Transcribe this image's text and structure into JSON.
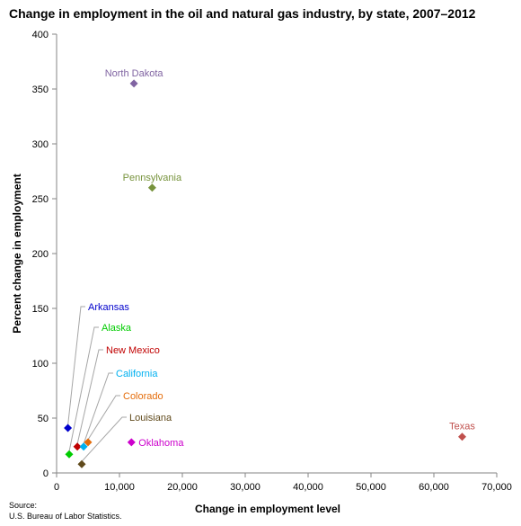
{
  "source": {
    "label": "Source:",
    "text": "U.S. Bureau of Labor Statistics."
  },
  "chart_data": {
    "type": "scatter",
    "title": "Change in employment in the oil and natural gas industry, by state, 2007–2012",
    "xlabel": "Change in employment level",
    "ylabel": "Percent change in employment",
    "xlim": [
      0,
      70000
    ],
    "ylim": [
      0,
      400
    ],
    "x_ticks": [
      0,
      10000,
      20000,
      30000,
      40000,
      50000,
      60000,
      70000
    ],
    "x_tick_labels": [
      "0",
      "10,000",
      "20,000",
      "30,000",
      "40,000",
      "50,000",
      "60,000",
      "70,000"
    ],
    "y_ticks": [
      0,
      50,
      100,
      150,
      200,
      250,
      300,
      350,
      400
    ],
    "y_tick_labels": [
      "0",
      "50",
      "100",
      "150",
      "200",
      "250",
      "300",
      "350",
      "400"
    ],
    "grid": false,
    "legend": "none",
    "marker": "diamond",
    "points": [
      {
        "label": "North Dakota",
        "x": 12300,
        "y": 355,
        "color": "#8064a2",
        "label_placement": "above"
      },
      {
        "label": "Pennsylvania",
        "x": 15200,
        "y": 260,
        "color": "#77933c",
        "label_placement": "above"
      },
      {
        "label": "Arkansas",
        "x": 1800,
        "y": 41,
        "color": "#0000cc",
        "label_placement": "callout"
      },
      {
        "label": "Alaska",
        "x": 2000,
        "y": 17,
        "color": "#00cc00",
        "label_placement": "callout"
      },
      {
        "label": "New Mexico",
        "x": 3300,
        "y": 24,
        "color": "#c00000",
        "label_placement": "callout"
      },
      {
        "label": "California",
        "x": 4300,
        "y": 24,
        "color": "#00b0f0",
        "label_placement": "callout"
      },
      {
        "label": "Colorado",
        "x": 5000,
        "y": 28,
        "color": "#e46c0a",
        "label_placement": "callout"
      },
      {
        "label": "Louisiana",
        "x": 4000,
        "y": 8,
        "color": "#604a1c",
        "label_placement": "callout"
      },
      {
        "label": "Oklahoma",
        "x": 11900,
        "y": 28,
        "color": "#cc00cc",
        "label_placement": "right"
      },
      {
        "label": "Texas",
        "x": 64500,
        "y": 33,
        "color": "#c0504d",
        "label_placement": "above"
      }
    ]
  }
}
